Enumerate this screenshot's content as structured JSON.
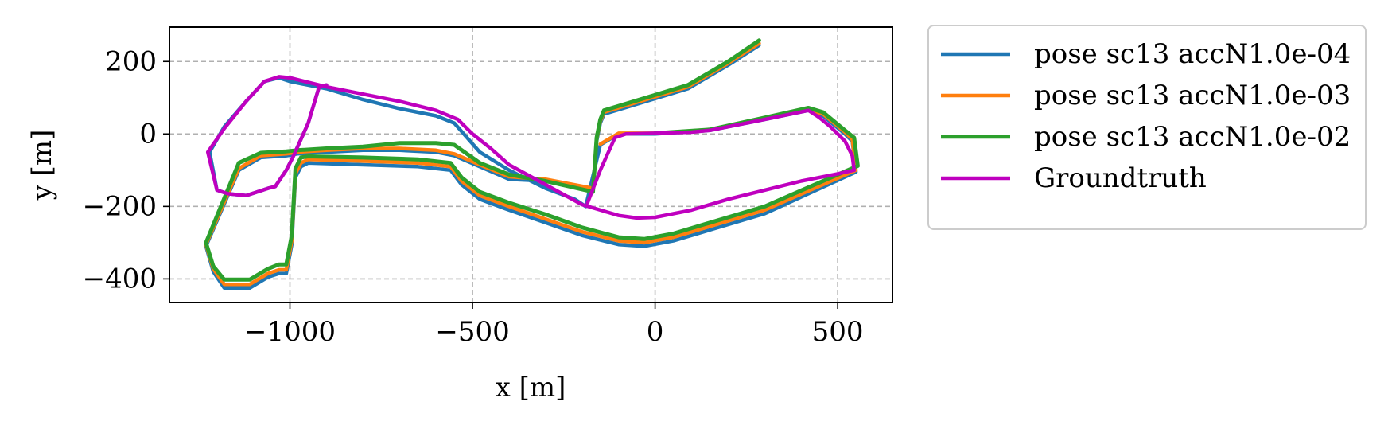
{
  "chart_data": {
    "type": "line",
    "xlabel": "x [m]",
    "ylabel": "y [m]",
    "xlim": [
      -1330,
      650
    ],
    "ylim": [
      -465,
      295
    ],
    "xticks": [
      -1000,
      -500,
      0,
      500
    ],
    "yticks": [
      -400,
      -200,
      0,
      200
    ],
    "xtick_labels": [
      "−1000",
      "−500",
      "0",
      "500"
    ],
    "ytick_labels": [
      "−400",
      "−200",
      "0",
      "200"
    ],
    "grid": true,
    "legend_position": "outside-right",
    "series": [
      {
        "name": "pose sc13 accN1.0e-04",
        "color": "#1f77b4",
        "points": [
          [
            285,
            245
          ],
          [
            200,
            190
          ],
          [
            90,
            125
          ],
          [
            -140,
            55
          ],
          [
            -150,
            30
          ],
          [
            -160,
            -20
          ],
          [
            -170,
            -155
          ],
          [
            -300,
            -130
          ],
          [
            -400,
            -125
          ],
          [
            -480,
            -90
          ],
          [
            -550,
            -60
          ],
          [
            -600,
            -50
          ],
          [
            -700,
            -45
          ],
          [
            -800,
            -45
          ],
          [
            -900,
            -50
          ],
          [
            -980,
            -55
          ],
          [
            -1010,
            -60
          ],
          [
            -1080,
            -65
          ],
          [
            -1140,
            -100
          ],
          [
            -1230,
            -310
          ],
          [
            -1210,
            -380
          ],
          [
            -1180,
            -425
          ],
          [
            -1110,
            -425
          ],
          [
            -1060,
            -395
          ],
          [
            -1030,
            -385
          ],
          [
            -1010,
            -385
          ],
          [
            -995,
            -305
          ],
          [
            -985,
            -120
          ],
          [
            -970,
            -90
          ],
          [
            -950,
            -80
          ],
          [
            -800,
            -85
          ],
          [
            -650,
            -90
          ],
          [
            -560,
            -100
          ],
          [
            -530,
            -140
          ],
          [
            -480,
            -180
          ],
          [
            -400,
            -210
          ],
          [
            -300,
            -245
          ],
          [
            -200,
            -280
          ],
          [
            -100,
            -305
          ],
          [
            -30,
            -310
          ],
          [
            50,
            -295
          ],
          [
            150,
            -265
          ],
          [
            300,
            -220
          ],
          [
            550,
            -105
          ],
          [
            540,
            -20
          ],
          [
            520,
            0
          ],
          [
            460,
            50
          ],
          [
            420,
            65
          ],
          [
            300,
            40
          ],
          [
            150,
            10
          ],
          [
            0,
            0
          ],
          [
            -100,
            0
          ],
          [
            -150,
            -30
          ],
          [
            -190,
            -200
          ],
          [
            -220,
            -180
          ],
          [
            -300,
            -150
          ],
          [
            -400,
            -100
          ],
          [
            -480,
            -50
          ],
          [
            -550,
            30
          ],
          [
            -600,
            50
          ],
          [
            -700,
            70
          ],
          [
            -800,
            95
          ],
          [
            -900,
            125
          ],
          [
            -1000,
            145
          ],
          [
            -1030,
            155
          ],
          [
            -1070,
            145
          ],
          [
            -1120,
            90
          ],
          [
            -1180,
            20
          ],
          [
            -1220,
            -50
          ],
          [
            -1200,
            -155
          ],
          [
            -1170,
            -165
          ],
          [
            -1120,
            -170
          ],
          [
            -1060,
            -150
          ],
          [
            -1040,
            -145
          ],
          [
            -1010,
            -100
          ],
          [
            -990,
            -60
          ],
          [
            -950,
            30
          ],
          [
            -920,
            130
          ],
          [
            -900,
            135
          ]
        ]
      },
      {
        "name": "pose sc13 accN1.0e-03",
        "color": "#ff7f0e",
        "points": [
          [
            285,
            250
          ],
          [
            200,
            195
          ],
          [
            90,
            130
          ],
          [
            -140,
            60
          ],
          [
            -150,
            35
          ],
          [
            -160,
            -15
          ],
          [
            -170,
            -150
          ],
          [
            -300,
            -125
          ],
          [
            -400,
            -118
          ],
          [
            -480,
            -85
          ],
          [
            -550,
            -55
          ],
          [
            -600,
            -45
          ],
          [
            -700,
            -40
          ],
          [
            -800,
            -40
          ],
          [
            -900,
            -45
          ],
          [
            -980,
            -50
          ],
          [
            -1010,
            -55
          ],
          [
            -1080,
            -60
          ],
          [
            -1140,
            -95
          ],
          [
            -1230,
            -305
          ],
          [
            -1210,
            -372
          ],
          [
            -1180,
            -415
          ],
          [
            -1110,
            -415
          ],
          [
            -1060,
            -385
          ],
          [
            -1030,
            -375
          ],
          [
            -1010,
            -375
          ],
          [
            -995,
            -295
          ],
          [
            -985,
            -110
          ],
          [
            -970,
            -80
          ],
          [
            -950,
            -70
          ],
          [
            -800,
            -75
          ],
          [
            -650,
            -80
          ],
          [
            -560,
            -90
          ],
          [
            -530,
            -130
          ],
          [
            -480,
            -170
          ],
          [
            -400,
            -200
          ],
          [
            -300,
            -235
          ],
          [
            -200,
            -270
          ],
          [
            -100,
            -295
          ],
          [
            -30,
            -300
          ],
          [
            50,
            -285
          ],
          [
            150,
            -255
          ],
          [
            300,
            -210
          ],
          [
            550,
            -100
          ],
          [
            540,
            -15
          ],
          [
            520,
            5
          ],
          [
            460,
            55
          ],
          [
            420,
            68
          ],
          [
            300,
            45
          ],
          [
            150,
            12
          ],
          [
            0,
            2
          ],
          [
            -100,
            2
          ],
          [
            -150,
            -28
          ]
        ]
      },
      {
        "name": "pose sc13 accN1.0e-02",
        "color": "#2ca02c",
        "points": [
          [
            285,
            258
          ],
          [
            200,
            200
          ],
          [
            90,
            135
          ],
          [
            -140,
            65
          ],
          [
            -150,
            40
          ],
          [
            -160,
            -10
          ],
          [
            -170,
            -160
          ],
          [
            -300,
            -130
          ],
          [
            -400,
            -112
          ],
          [
            -480,
            -80
          ],
          [
            -550,
            -30
          ],
          [
            -600,
            -25
          ],
          [
            -700,
            -25
          ],
          [
            -800,
            -35
          ],
          [
            -900,
            -40
          ],
          [
            -980,
            -45
          ],
          [
            -1010,
            -48
          ],
          [
            -1080,
            -52
          ],
          [
            -1140,
            -80
          ],
          [
            -1230,
            -300
          ],
          [
            -1210,
            -365
          ],
          [
            -1180,
            -402
          ],
          [
            -1110,
            -402
          ],
          [
            -1060,
            -372
          ],
          [
            -1030,
            -360
          ],
          [
            -1010,
            -360
          ],
          [
            -995,
            -280
          ],
          [
            -985,
            -95
          ],
          [
            -970,
            -65
          ],
          [
            -950,
            -62
          ],
          [
            -800,
            -65
          ],
          [
            -650,
            -70
          ],
          [
            -560,
            -80
          ],
          [
            -530,
            -120
          ],
          [
            -480,
            -160
          ],
          [
            -400,
            -190
          ],
          [
            -300,
            -222
          ],
          [
            -200,
            -258
          ],
          [
            -100,
            -285
          ],
          [
            -30,
            -290
          ],
          [
            50,
            -275
          ],
          [
            150,
            -245
          ],
          [
            300,
            -200
          ],
          [
            555,
            -88
          ],
          [
            545,
            -10
          ],
          [
            520,
            10
          ],
          [
            460,
            60
          ],
          [
            420,
            72
          ],
          [
            300,
            45
          ],
          [
            150,
            12
          ],
          [
            0,
            2
          ]
        ]
      },
      {
        "name": "Groundtruth",
        "color": "#bf00bf",
        "points": [
          [
            -900,
            135
          ],
          [
            -920,
            130
          ],
          [
            -950,
            30
          ],
          [
            -990,
            -60
          ],
          [
            -1010,
            -100
          ],
          [
            -1040,
            -145
          ],
          [
            -1060,
            -150
          ],
          [
            -1120,
            -170
          ],
          [
            -1170,
            -165
          ],
          [
            -1200,
            -155
          ],
          [
            -1225,
            -50
          ],
          [
            -1180,
            15
          ],
          [
            -1120,
            90
          ],
          [
            -1070,
            145
          ],
          [
            -1030,
            158
          ],
          [
            -1000,
            155
          ],
          [
            -900,
            130
          ],
          [
            -800,
            110
          ],
          [
            -700,
            90
          ],
          [
            -600,
            65
          ],
          [
            -540,
            40
          ],
          [
            -500,
            0
          ],
          [
            -450,
            -40
          ],
          [
            -400,
            -85
          ],
          [
            -300,
            -140
          ],
          [
            -200,
            -195
          ],
          [
            -150,
            -210
          ],
          [
            -100,
            -225
          ],
          [
            -50,
            -232
          ],
          [
            0,
            -230
          ],
          [
            100,
            -210
          ],
          [
            200,
            -180
          ],
          [
            300,
            -155
          ],
          [
            400,
            -130
          ],
          [
            500,
            -110
          ],
          [
            545,
            -100
          ],
          [
            540,
            -60
          ],
          [
            520,
            -20
          ],
          [
            480,
            20
          ],
          [
            450,
            45
          ],
          [
            420,
            65
          ],
          [
            300,
            40
          ],
          [
            150,
            10
          ],
          [
            100,
            5
          ],
          [
            0,
            2
          ],
          [
            -80,
            0
          ],
          [
            -110,
            -10
          ],
          [
            -150,
            -100
          ],
          [
            -185,
            -190
          ]
        ]
      }
    ]
  }
}
